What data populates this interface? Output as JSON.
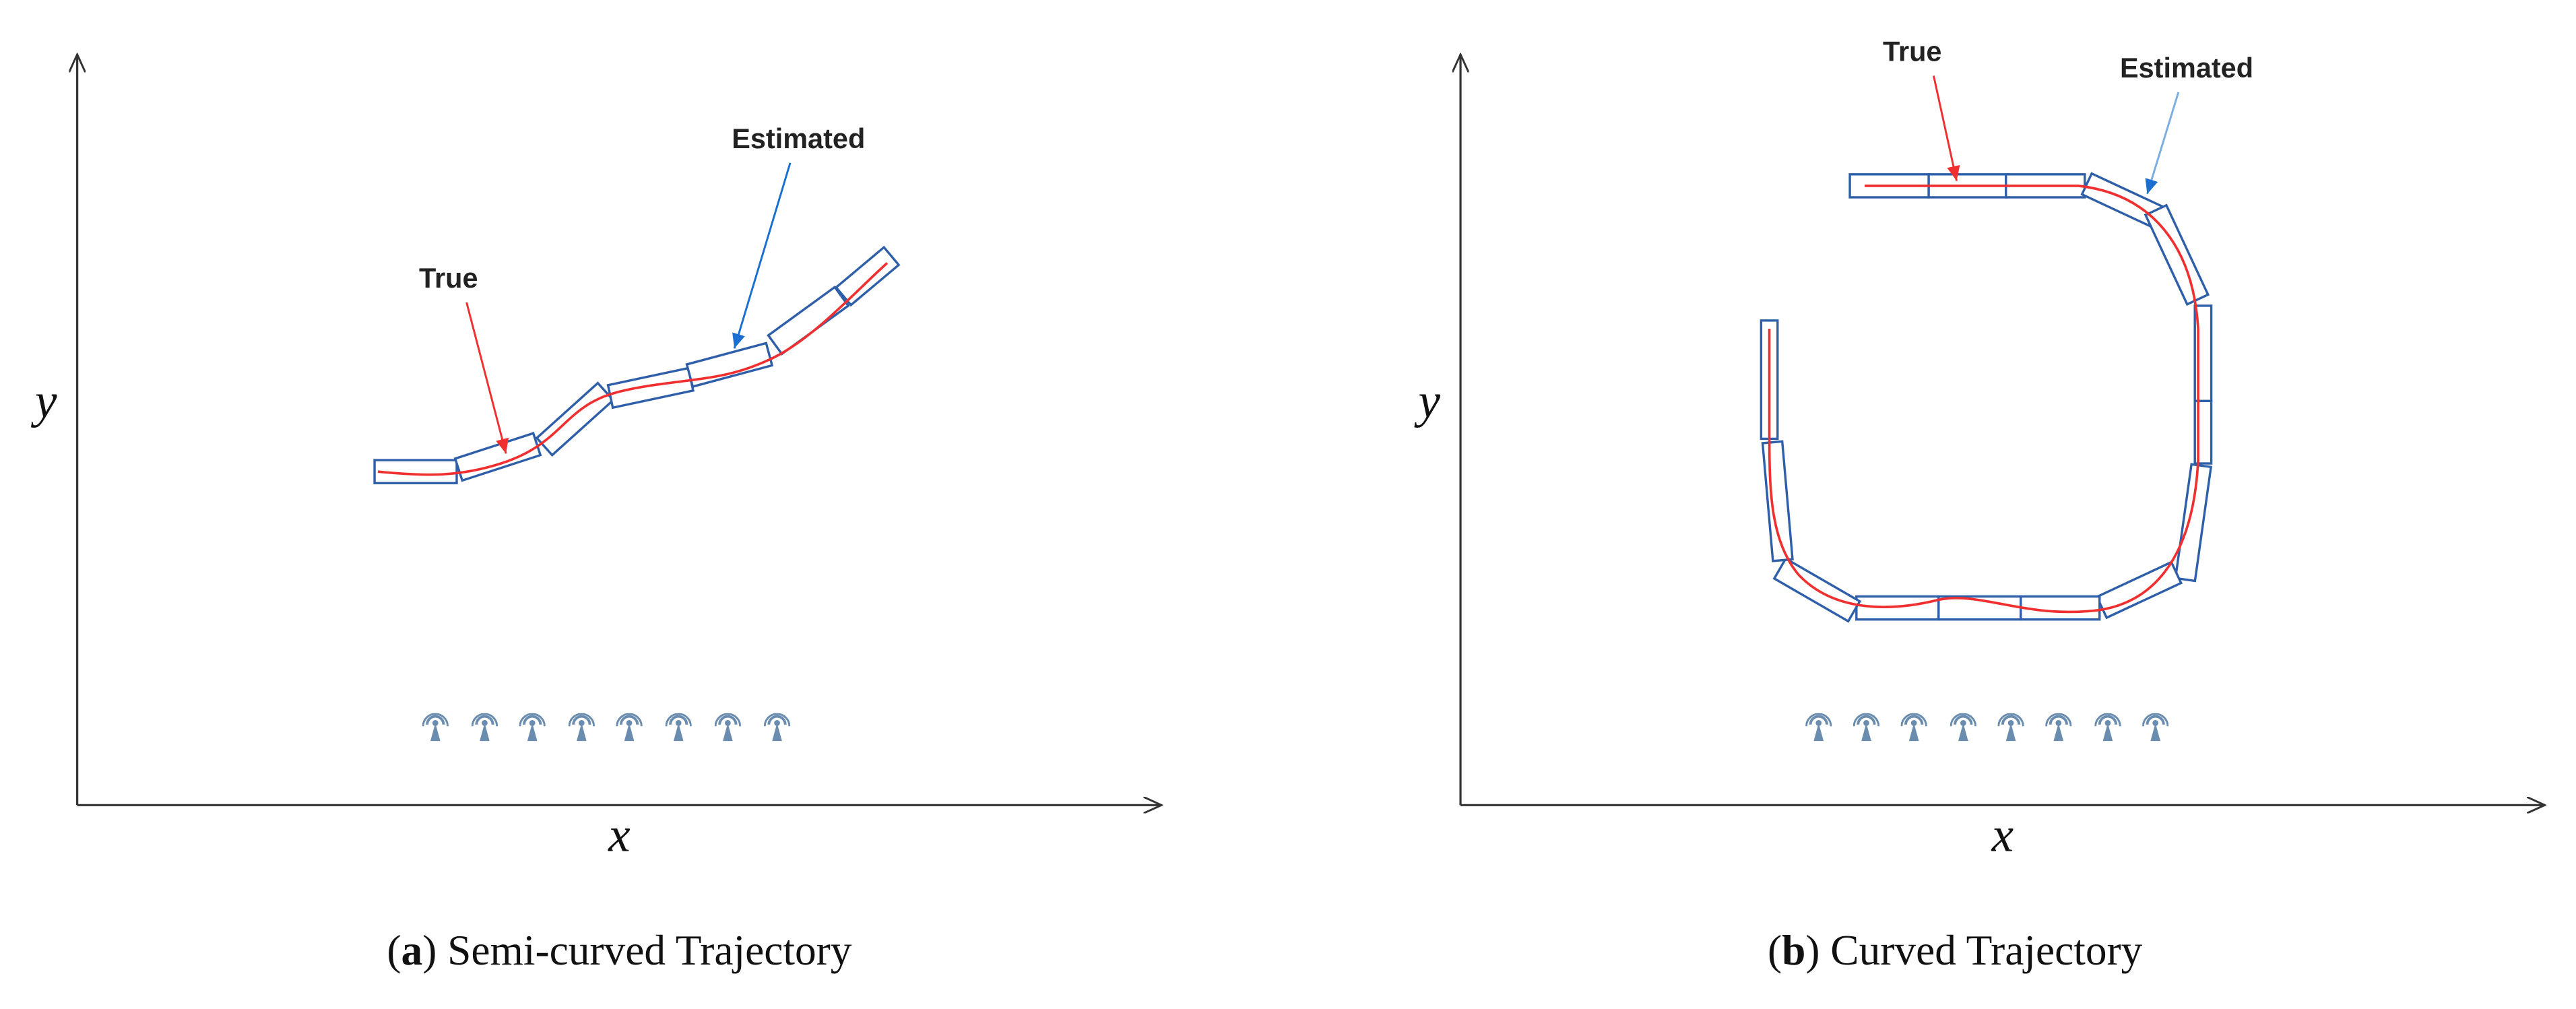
{
  "panels": [
    {
      "y_label": "y",
      "x_label": "x",
      "true_label": "True",
      "estimated_label": "Estimated",
      "caption": {
        "prefix": "(",
        "letter": "a",
        "suffix": ") Semi-curved Trajectory"
      }
    },
    {
      "y_label": "y",
      "x_label": "x",
      "true_label": "True",
      "estimated_label": "Estimated",
      "caption": {
        "prefix": "(",
        "letter": "b",
        "suffix": ") Curved Trajectory"
      }
    }
  ]
}
